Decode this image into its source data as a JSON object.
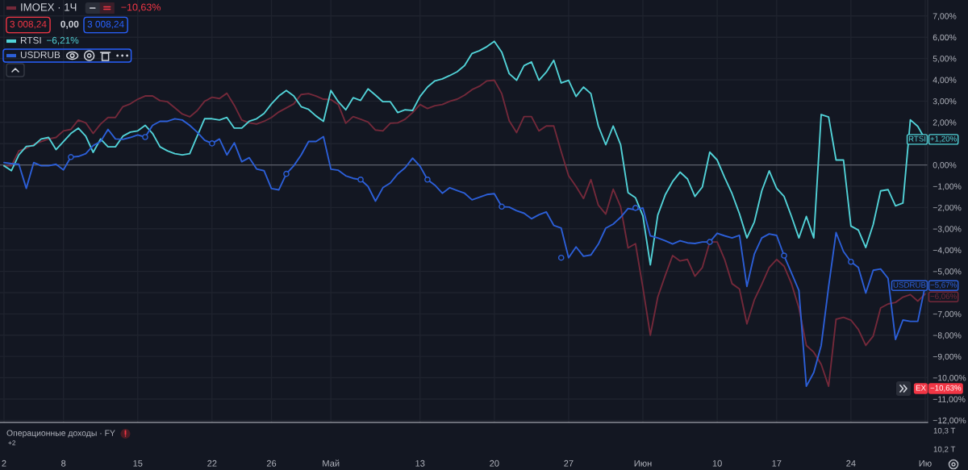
{
  "chart_data": {
    "type": "line",
    "categories": [
      "2",
      null,
      null,
      null,
      null,
      null,
      null,
      null,
      "8",
      null,
      null,
      null,
      null,
      null,
      null,
      null,
      null,
      null,
      "15",
      null,
      null,
      null,
      null,
      null,
      null,
      null,
      null,
      null,
      "22",
      null,
      null,
      null,
      null,
      null,
      null,
      null,
      "26",
      null,
      null,
      null,
      null,
      null,
      null,
      null,
      "Май",
      null,
      null,
      null,
      null,
      null,
      null,
      null,
      null,
      null,
      null,
      null,
      "13",
      null,
      null,
      null,
      null,
      null,
      null,
      null,
      null,
      null,
      "20",
      null,
      null,
      null,
      null,
      null,
      null,
      null,
      null,
      null,
      "27",
      null,
      null,
      null,
      null,
      null,
      null,
      null,
      null,
      null,
      "Июн",
      null,
      null,
      null,
      null,
      null,
      null,
      null,
      null,
      null,
      "10",
      null,
      null,
      null,
      null,
      null,
      null,
      null,
      "17",
      null,
      null,
      null,
      null,
      null,
      null,
      null,
      null,
      null,
      "24",
      null,
      null,
      null,
      null,
      null,
      null,
      null,
      null,
      null,
      "Ию"
    ],
    "series": [
      {
        "name": "IMOEX · 1Ч",
        "color": "#74293a",
        "values": [
          -0.04,
          -0.04,
          0.66,
          0.78,
          0.97,
          1.1,
          1.22,
          1.29,
          1.6,
          1.67,
          2.11,
          1.98,
          1.48,
          1.92,
          2.23,
          2.23,
          2.74,
          2.87,
          3.09,
          3.24,
          3.24,
          3.02,
          2.97,
          2.68,
          2.39,
          2.26,
          2.55,
          2.99,
          3.18,
          3.12,
          3.37,
          2.8,
          2.11,
          1.98,
          1.92,
          2.05,
          2.23,
          2.49,
          2.68,
          2.87,
          3.31,
          3.35,
          3.24,
          3.09,
          3.07,
          2.84,
          1.96,
          2.27,
          2.15,
          2.02,
          1.64,
          1.6,
          1.96,
          1.98,
          2.15,
          2.46,
          2.84,
          2.65,
          2.78,
          2.84,
          2.99,
          3.09,
          3.28,
          3.54,
          3.7,
          3.95,
          3.98,
          3.35,
          2.08,
          1.52,
          2.27,
          2.27,
          1.6,
          1.83,
          1.83,
          0.63,
          -0.51,
          -1.01,
          -1.58,
          -0.69,
          -1.89,
          -2.31,
          -1.14,
          -1.96,
          -3.9,
          -3.7,
          -5.77,
          -8.0,
          -6.21,
          -5.2,
          -4.26,
          -4.51,
          -4.44,
          -5.23,
          -4.82,
          -3.62,
          -3.62,
          -4.44,
          -5.58,
          -5.83,
          -7.47,
          -6.34,
          -5.61,
          -4.82,
          -4.44,
          -4.76,
          -5.58,
          -6.72,
          -8.48,
          -8.8,
          -9.37,
          -10.4,
          -7.25,
          -7.16,
          -7.29,
          -7.73,
          -8.48,
          -8.04,
          -6.72,
          -6.53,
          -6.46,
          -6.21,
          -6.09,
          -6.4,
          -6.06
        ],
        "value_labels": [
          null,
          null,
          null,
          null,
          null,
          null,
          null,
          null,
          null,
          null,
          null,
          null,
          null,
          null,
          null,
          null,
          null,
          null,
          null,
          null,
          null,
          null,
          null,
          null,
          null,
          null,
          null,
          null,
          null,
          null,
          null,
          null,
          null,
          null,
          null,
          null,
          null,
          null,
          null,
          null,
          null,
          null,
          null,
          null,
          null,
          null,
          null,
          null,
          null,
          null,
          null,
          null,
          null,
          null,
          null,
          null,
          null,
          null,
          null,
          null,
          null,
          null,
          null,
          null,
          null,
          null,
          null,
          null,
          null,
          null,
          null,
          null,
          null,
          null,
          null,
          null,
          null,
          null,
          null,
          null,
          null,
          null,
          null,
          null,
          null,
          null,
          null,
          null,
          null,
          null,
          null,
          null,
          null,
          null,
          null,
          null,
          null,
          null,
          null,
          null,
          null,
          null,
          null,
          null,
          null,
          null,
          null,
          null,
          null,
          null,
          null,
          null,
          null,
          null,
          null,
          null,
          null,
          null,
          null,
          null,
          null,
          null,
          null,
          null,
          "−6,06%"
        ]
      },
      {
        "name": "RTSI",
        "color": "#52d3d8",
        "values": [
          -0.04,
          -0.27,
          0.47,
          0.87,
          0.91,
          1.22,
          1.29,
          0.72,
          1.1,
          1.48,
          1.73,
          1.35,
          0.59,
          1.22,
          0.85,
          0.85,
          1.35,
          1.54,
          1.6,
          1.86,
          1.48,
          0.85,
          0.66,
          0.53,
          0.47,
          0.53,
          1.35,
          2.17,
          2.17,
          2.11,
          2.23,
          1.73,
          1.73,
          2.05,
          2.17,
          2.42,
          2.87,
          3.24,
          3.5,
          3.24,
          2.74,
          2.61,
          2.3,
          2.05,
          3.5,
          2.97,
          2.59,
          3.16,
          3.03,
          3.57,
          3.28,
          2.97,
          2.97,
          2.46,
          2.59,
          2.56,
          3.22,
          3.66,
          3.95,
          4.04,
          4.2,
          4.38,
          4.67,
          5.24,
          5.37,
          5.56,
          5.81,
          5.3,
          4.29,
          3.98,
          4.67,
          4.84,
          3.98,
          4.36,
          4.92,
          3.85,
          3.98,
          3.22,
          3.66,
          3.35,
          1.83,
          0.95,
          1.83,
          0.95,
          -1.3,
          -1.54,
          -2.4,
          -4.7,
          -2.36,
          -1.41,
          -0.78,
          -0.34,
          -0.66,
          -1.48,
          -1.04,
          0.6,
          0.23,
          -0.59,
          -1.35,
          -2.3,
          -3.43,
          -2.68,
          -1.22,
          -0.28,
          -1.1,
          -1.48,
          -2.42,
          -3.43,
          -2.42,
          -3.43,
          2.37,
          2.25,
          0.23,
          0.23,
          -2.87,
          -3.06,
          -3.88,
          -2.8,
          -1.22,
          -1.16,
          -1.92,
          -1.79,
          2.12,
          1.81,
          1.2
        ],
        "value_labels": [
          null,
          null,
          null,
          null,
          null,
          null,
          null,
          null,
          null,
          null,
          null,
          null,
          null,
          null,
          null,
          null,
          null,
          null,
          null,
          null,
          null,
          null,
          null,
          null,
          null,
          null,
          null,
          null,
          null,
          null,
          null,
          null,
          null,
          null,
          null,
          null,
          null,
          null,
          null,
          null,
          null,
          null,
          null,
          null,
          null,
          null,
          null,
          null,
          null,
          null,
          null,
          null,
          null,
          null,
          null,
          null,
          null,
          null,
          null,
          null,
          null,
          null,
          null,
          null,
          null,
          null,
          null,
          null,
          null,
          null,
          null,
          null,
          null,
          null,
          null,
          null,
          null,
          null,
          null,
          null,
          null,
          null,
          null,
          null,
          null,
          null,
          null,
          null,
          null,
          null,
          null,
          null,
          null,
          null,
          null,
          null,
          null,
          null,
          null,
          null,
          null,
          null,
          null,
          null,
          null,
          null,
          null,
          null,
          null,
          null,
          null,
          null,
          null,
          null,
          null,
          null,
          null,
          null,
          null,
          null,
          null,
          null,
          null,
          null,
          "+1,20%"
        ]
      },
      {
        "name": "USDRUB",
        "color": "#2c5fd8",
        "values": [
          0.11,
          0.06,
          0.03,
          -1.1,
          0.11,
          -0.04,
          -0.04,
          0.03,
          -0.23,
          0.37,
          0.4,
          0.53,
          0.91,
          1.1,
          1.67,
          1.22,
          1.2,
          1.29,
          1.41,
          1.31,
          1.86,
          2.05,
          2.05,
          2.17,
          2.11,
          1.86,
          1.54,
          1.16,
          1.01,
          1.22,
          0.47,
          1.04,
          0.15,
          0.34,
          -0.19,
          -0.27,
          -1.11,
          -1.17,
          -0.42,
          -0.04,
          0.47,
          1.1,
          1.1,
          1.33,
          -0.2,
          -0.25,
          -0.51,
          -0.63,
          -0.69,
          -1.01,
          -1.7,
          -1.07,
          -0.85,
          -0.42,
          -0.13,
          0.32,
          -0.06,
          -0.69,
          -0.95,
          -1.33,
          -1.07,
          -1.2,
          -1.33,
          -1.64,
          -1.52,
          -1.39,
          -1.35,
          -1.96,
          -1.98,
          -2.15,
          -2.27,
          -2.53,
          -2.34,
          -2.21,
          -2.84,
          -2.97,
          -4.36,
          -3.85,
          -4.29,
          -4.23,
          -3.72,
          -2.97,
          -2.78,
          -2.46,
          -2.05,
          -2.11,
          -2.02,
          -3.33,
          -3.43,
          -3.56,
          -3.71,
          -3.56,
          -3.66,
          -3.69,
          -3.62,
          -3.62,
          -3.21,
          -3.33,
          -3.43,
          -3.31,
          -5.71,
          -4.19,
          -3.43,
          -3.24,
          -3.31,
          -4.26,
          -5.08,
          -5.9,
          -10.4,
          -9.75,
          -8.48,
          -5.71,
          -3.18,
          -4.07,
          -4.55,
          -4.82,
          -6.02,
          -4.95,
          -4.89,
          -5.33,
          -8.2,
          -7.29,
          -7.35,
          -7.35,
          -5.67
        ],
        "value_labels": [
          null,
          null,
          null,
          null,
          null,
          null,
          null,
          null,
          null,
          null,
          null,
          null,
          null,
          null,
          null,
          null,
          null,
          null,
          null,
          null,
          null,
          null,
          null,
          null,
          null,
          null,
          null,
          null,
          null,
          null,
          null,
          null,
          null,
          null,
          null,
          null,
          null,
          null,
          null,
          null,
          null,
          null,
          null,
          null,
          null,
          null,
          null,
          null,
          null,
          null,
          null,
          null,
          null,
          null,
          null,
          null,
          null,
          null,
          null,
          null,
          null,
          null,
          null,
          null,
          null,
          null,
          null,
          null,
          null,
          null,
          null,
          null,
          null,
          null,
          null,
          null,
          null,
          null,
          null,
          null,
          null,
          null,
          null,
          null,
          null,
          null,
          null,
          null,
          null,
          null,
          null,
          null,
          null,
          null,
          null,
          null,
          null,
          null,
          null,
          null,
          null,
          null,
          null,
          null,
          null,
          null,
          null,
          null,
          null,
          null,
          null,
          null,
          null,
          null,
          null,
          null,
          null,
          null,
          null,
          null,
          null,
          null,
          null,
          null,
          "−5,67%"
        ]
      },
      {
        "type": "scatter",
        "color": "#2c5fd8",
        "marker": "circle",
        "values": [
          null,
          null,
          null,
          null,
          null,
          null,
          null,
          null,
          null,
          0.37,
          null,
          null,
          null,
          null,
          null,
          null,
          null,
          null,
          null,
          1.31,
          null,
          null,
          null,
          null,
          null,
          null,
          null,
          null,
          1.01,
          null,
          null,
          null,
          null,
          null,
          null,
          null,
          null,
          null,
          -0.42,
          null,
          null,
          null,
          null,
          null,
          null,
          null,
          null,
          null,
          -0.69,
          null,
          null,
          null,
          null,
          null,
          null,
          null,
          null,
          -0.69,
          null,
          null,
          null,
          null,
          null,
          null,
          null,
          null,
          null,
          -1.96,
          null,
          null,
          null,
          null,
          null,
          null,
          null,
          -4.36,
          null,
          null,
          null,
          null,
          null,
          null,
          null,
          null,
          null,
          -2.02,
          null,
          null,
          null,
          null,
          null,
          null,
          null,
          null,
          null,
          -3.62,
          null,
          null,
          null,
          null,
          null,
          null,
          null,
          null,
          null,
          -4.26,
          null,
          null,
          null,
          null,
          null,
          null,
          null,
          null,
          -4.55,
          null,
          null,
          null,
          null,
          null,
          null,
          null,
          null,
          null,
          null
        ]
      }
    ],
    "ylim": [
      -12.1,
      7.75
    ],
    "yticks": [
      {
        "value": 7,
        "label": "7,00%"
      },
      {
        "value": 6,
        "label": "6,00%"
      },
      {
        "value": 5,
        "label": "5,00%"
      },
      {
        "value": 4,
        "label": "4,00%"
      },
      {
        "value": 3,
        "label": "3,00%"
      },
      {
        "value": 2,
        "label": "2,00%"
      },
      {
        "value": 1,
        "label": null
      },
      {
        "value": 0,
        "label": "0,00%"
      },
      {
        "value": -1,
        "label": "−1,00%"
      },
      {
        "value": -2,
        "label": "−2,00%"
      },
      {
        "value": -3,
        "label": "−3,00%"
      },
      {
        "value": -4,
        "label": "−4,00%"
      },
      {
        "value": -5,
        "label": "−5,00%"
      },
      {
        "value": -6,
        "label": null
      },
      {
        "value": -7,
        "label": "−7,00%"
      },
      {
        "value": -8,
        "label": "−8,00%"
      },
      {
        "value": -9,
        "label": "−9,00%"
      },
      {
        "value": -10,
        "label": "−10,00%"
      },
      {
        "value": -11,
        "label": "−11,00%"
      },
      {
        "value": -12,
        "label": "−12,00%"
      }
    ],
    "grid": true,
    "legend": "top left",
    "ref_lines": [
      {
        "axis": "y",
        "value": 0,
        "color": "#5d606b"
      }
    ],
    "annotations": [
      "−10,63%",
      "3 008,24",
      "0,00",
      "3 008,24",
      "−6,21%",
      "RTSI",
      "USDRUB",
      "EX",
      "−10,63%",
      "Операционные доходы · FY",
      "+2",
      "10,3 T",
      "10,2 T"
    ]
  }
}
